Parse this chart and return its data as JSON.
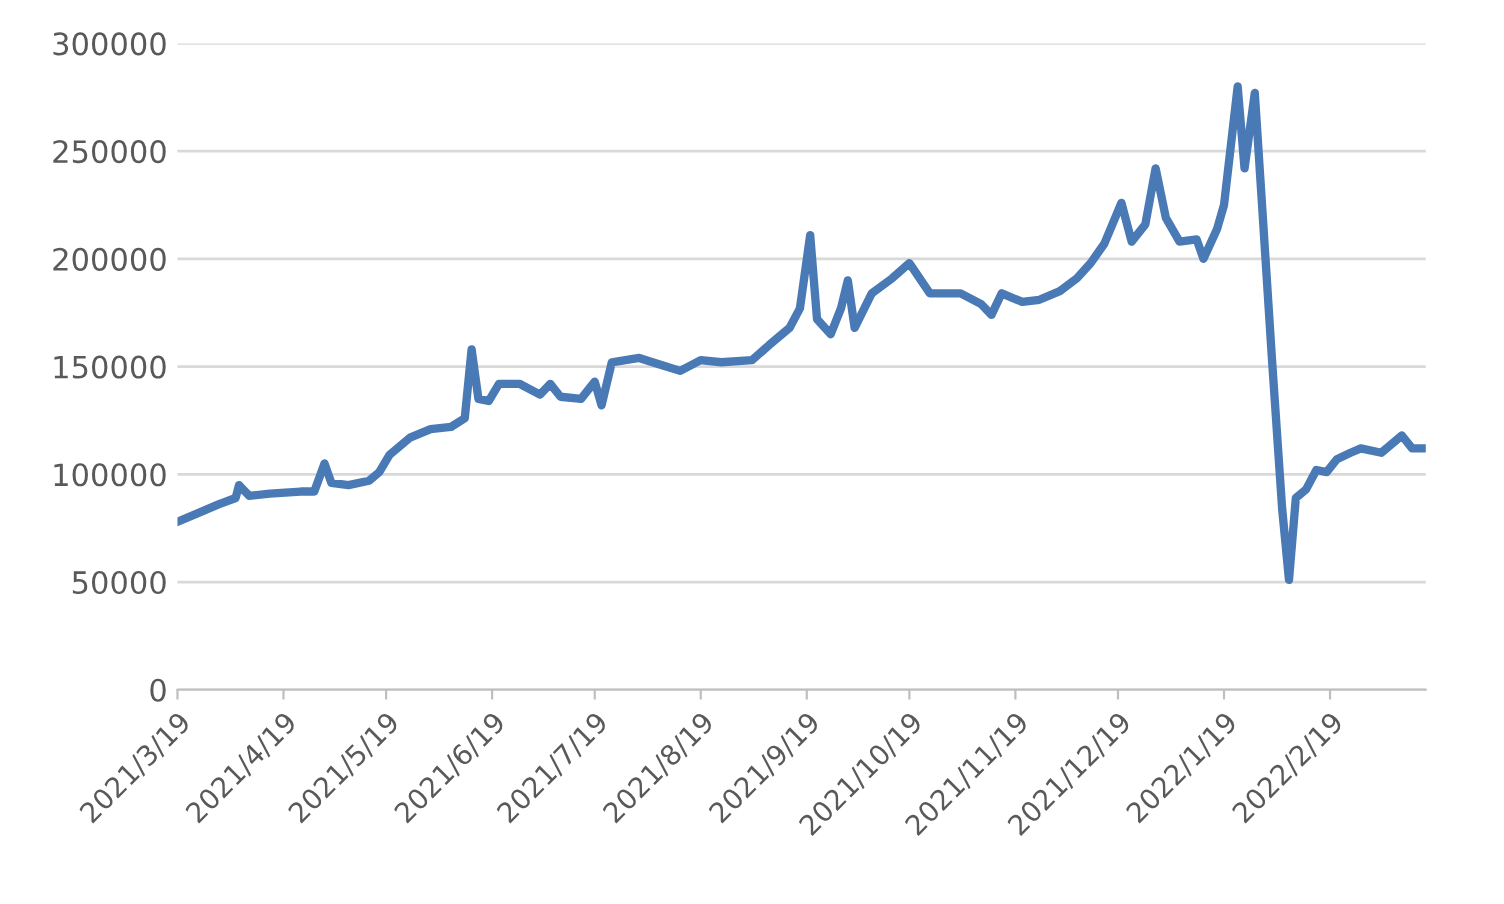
{
  "chart_data": {
    "type": "line",
    "color": "#4a7ab5",
    "grid": "y",
    "marker": "none",
    "line_style": "solid",
    "legend": false,
    "x": [
      "2021-03-19",
      "2021-03-25",
      "2021-03-31",
      "2021-04-05",
      "2021-04-06",
      "2021-04-09",
      "2021-04-15",
      "2021-04-24",
      "2021-04-28",
      "2021-05-01",
      "2021-05-03",
      "2021-05-08",
      "2021-05-14",
      "2021-05-17",
      "2021-05-20",
      "2021-05-26",
      "2021-06-01",
      "2021-06-07",
      "2021-06-11",
      "2021-06-13",
      "2021-06-15",
      "2021-06-18",
      "2021-06-21",
      "2021-06-27",
      "2021-07-03",
      "2021-07-06",
      "2021-07-09",
      "2021-07-15",
      "2021-07-19",
      "2021-07-21",
      "2021-07-24",
      "2021-08-01",
      "2021-08-07",
      "2021-08-13",
      "2021-08-19",
      "2021-08-25",
      "2021-09-03",
      "2021-09-08",
      "2021-09-14",
      "2021-09-17",
      "2021-09-20",
      "2021-09-22",
      "2021-09-26",
      "2021-09-29",
      "2021-10-01",
      "2021-10-03",
      "2021-10-08",
      "2021-10-14",
      "2021-10-19",
      "2021-10-25",
      "2021-11-03",
      "2021-11-09",
      "2021-11-12",
      "2021-11-15",
      "2021-11-21",
      "2021-11-26",
      "2021-12-02",
      "2021-12-07",
      "2021-12-11",
      "2021-12-15",
      "2021-12-20",
      "2021-12-23",
      "2021-12-27",
      "2021-12-30",
      "2022-01-02",
      "2022-01-06",
      "2022-01-11",
      "2022-01-13",
      "2022-01-17",
      "2022-01-19",
      "2022-01-23",
      "2022-01-25",
      "2022-01-28",
      "2022-01-30",
      "2022-02-02",
      "2022-02-05",
      "2022-02-07",
      "2022-02-09",
      "2022-02-12",
      "2022-02-15",
      "2022-02-18",
      "2022-02-21",
      "2022-02-25",
      "2022-02-28",
      "2022-03-06",
      "2022-03-12",
      "2022-03-15",
      "2022-03-19"
    ],
    "values": [
      78000,
      82000,
      86000,
      89000,
      95000,
      90000,
      91000,
      92000,
      92000,
      105000,
      96000,
      95000,
      97000,
      101000,
      109000,
      117000,
      121000,
      122000,
      126000,
      158000,
      135000,
      134000,
      142000,
      142000,
      137000,
      142000,
      136000,
      135000,
      143000,
      132000,
      152000,
      154000,
      151000,
      148000,
      153000,
      152000,
      153000,
      160000,
      168000,
      177000,
      211000,
      172000,
      165000,
      177000,
      190000,
      168000,
      184000,
      191000,
      198000,
      184000,
      184000,
      179000,
      174000,
      184000,
      180000,
      181000,
      185000,
      191000,
      198000,
      207000,
      226000,
      208000,
      216000,
      242000,
      219000,
      208000,
      209000,
      200000,
      214000,
      225000,
      280000,
      242000,
      277000,
      228000,
      154000,
      84000,
      51000,
      89000,
      93000,
      102000,
      101000,
      107000,
      110000,
      112000,
      110000,
      118000,
      112000,
      112000
    ],
    "xlim": [
      "2021-03-19",
      "2022-03-19"
    ],
    "xticks": [
      {
        "value": "2021-03-19",
        "label": "2021/3/19"
      },
      {
        "value": "2021-04-19",
        "label": "2021/4/19"
      },
      {
        "value": "2021-05-19",
        "label": "2021/5/19"
      },
      {
        "value": "2021-06-19",
        "label": "2021/6/19"
      },
      {
        "value": "2021-07-19",
        "label": "2021/7/19"
      },
      {
        "value": "2021-08-19",
        "label": "2021/8/19"
      },
      {
        "value": "2021-09-19",
        "label": "2021/9/19"
      },
      {
        "value": "2021-10-19",
        "label": "2021/10/19"
      },
      {
        "value": "2021-11-19",
        "label": "2021/11/19"
      },
      {
        "value": "2021-12-19",
        "label": "2021/12/19"
      },
      {
        "value": "2022-01-19",
        "label": "2022/1/19"
      },
      {
        "value": "2022-02-19",
        "label": "2022/2/19"
      }
    ],
    "ylim": [
      0,
      300000
    ],
    "yticks": [
      0,
      50000,
      100000,
      150000,
      200000,
      250000,
      300000
    ]
  }
}
